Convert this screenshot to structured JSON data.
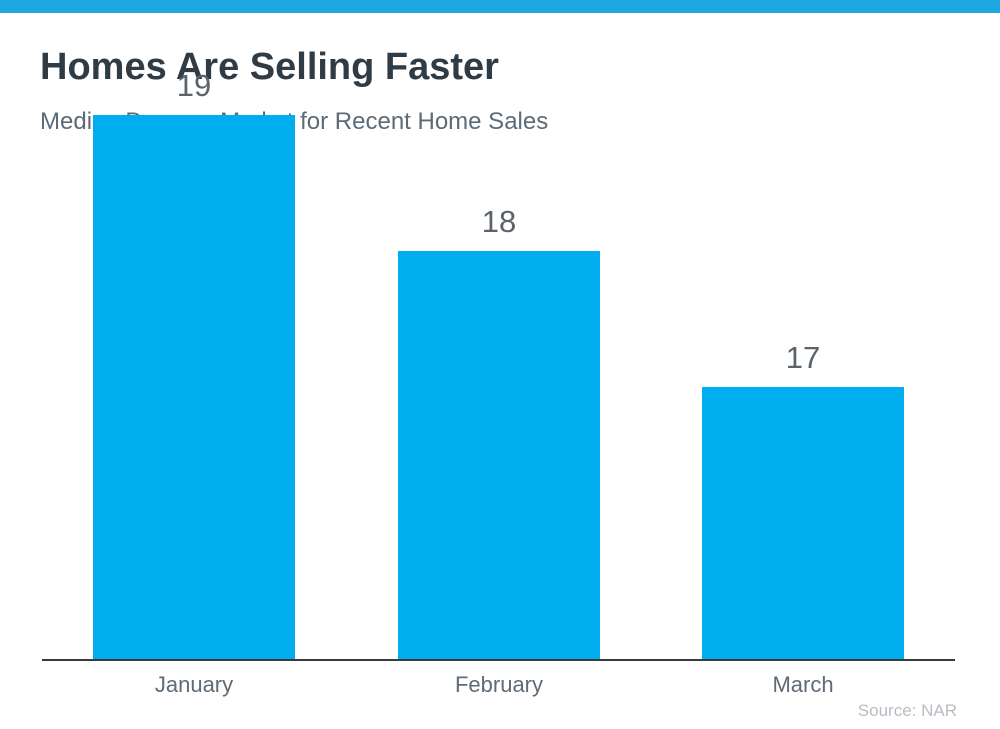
{
  "header": {
    "title": "Homes Are Selling Faster",
    "subtitle": "Median Days on Market for Recent Home Sales"
  },
  "source_note": "Source: NAR",
  "colors": {
    "top_band": "#1da8e2",
    "bar": "#00aeef",
    "title_text": "#2f3b45",
    "subtitle_text": "#5b6b77",
    "axis_line": "#3a3a3a",
    "value_label_text": "#5a626b",
    "category_label_text": "#5f6b77",
    "source_text": "#b7bdc3"
  },
  "chart_data": {
    "type": "bar",
    "title": "Homes Are Selling Faster",
    "subtitle": "Median Days on Market for Recent Home Sales",
    "categories": [
      "January",
      "February",
      "March"
    ],
    "values": [
      19,
      18,
      17
    ],
    "value_labels_shown": true,
    "xlabel": "",
    "ylabel": "",
    "ylim": [
      16,
      19
    ],
    "gridlines": false,
    "legend": "none",
    "bar_color": "#00aeef"
  }
}
